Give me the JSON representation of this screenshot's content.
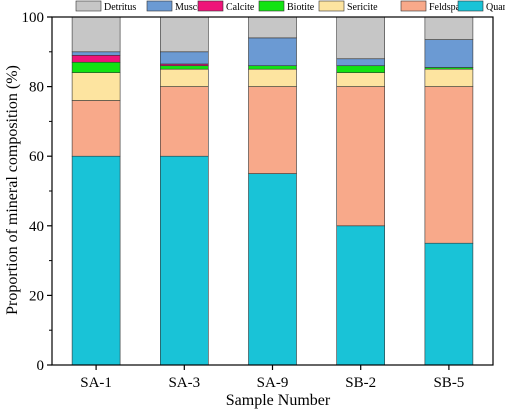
{
  "chart_data": {
    "type": "bar",
    "stacked": true,
    "xlabel": "Sample Number",
    "ylabel": "Proportion of mineral composition (%)",
    "ylim": [
      0,
      100
    ],
    "yticks": [
      0,
      20,
      40,
      60,
      80,
      100
    ],
    "grid": false,
    "legend_position": "top",
    "categories": [
      "SA-1",
      "SA-3",
      "SA-9",
      "SB-2",
      "SB-5"
    ],
    "series": [
      {
        "name": "Quartz",
        "color": "#19c3d7",
        "values": [
          60,
          60,
          55,
          40,
          35
        ]
      },
      {
        "name": "Feldspar",
        "color": "#f8a98a",
        "values": [
          16,
          20,
          25,
          40,
          45
        ]
      },
      {
        "name": "Sericite",
        "color": "#fde4a0",
        "values": [
          8,
          5,
          5,
          4,
          5
        ]
      },
      {
        "name": "Biotite",
        "color": "#12e312",
        "values": [
          3,
          1,
          1,
          2,
          0.5
        ]
      },
      {
        "name": "Calcite",
        "color": "#ee1479",
        "values": [
          2,
          0.5,
          0,
          0,
          0
        ]
      },
      {
        "name": "Muscovite",
        "color": "#6b9ad3",
        "values": [
          1,
          3.5,
          8,
          2,
          8
        ]
      },
      {
        "name": "Detritus",
        "color": "#c6c6c6",
        "values": [
          10,
          10,
          6,
          12,
          6.5
        ]
      }
    ],
    "legend_order": [
      "Detritus",
      "Muscovite",
      "Calcite",
      "Biotite",
      "Sericite",
      "Feldspar",
      "Quartz"
    ]
  }
}
